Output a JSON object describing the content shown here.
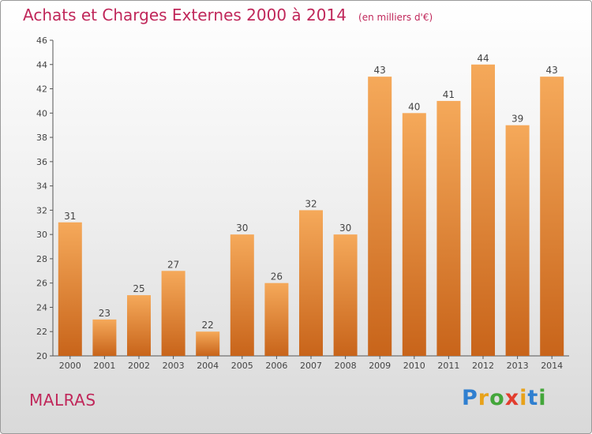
{
  "chart_data": {
    "type": "bar",
    "title": "Achats et Charges Externes 2000 à 2014",
    "unit_note": "(en milliers d'€)",
    "categories": [
      "2000",
      "2001",
      "2002",
      "2003",
      "2004",
      "2005",
      "2006",
      "2007",
      "2008",
      "2009",
      "2010",
      "2011",
      "2012",
      "2013",
      "2014"
    ],
    "values": [
      31,
      23,
      25,
      27,
      22,
      30,
      26,
      32,
      30,
      43,
      40,
      41,
      44,
      39,
      43
    ],
    "ylim": [
      20,
      46
    ],
    "yticks": [
      20,
      22,
      24,
      26,
      28,
      30,
      32,
      34,
      36,
      38,
      40,
      42,
      44,
      46
    ],
    "grid": false,
    "bar_color_top": "#f5a95a",
    "bar_color_bottom": "#c8641a"
  },
  "commune": "MALRAS",
  "logo": {
    "letters": [
      "P",
      "r",
      "o",
      "x",
      "i",
      "t",
      "i"
    ],
    "colors": [
      "#2f7fd0",
      "#e8a21a",
      "#43a63a",
      "#e23d2e",
      "#e8a21a",
      "#2f7fd0",
      "#43a63a"
    ]
  }
}
